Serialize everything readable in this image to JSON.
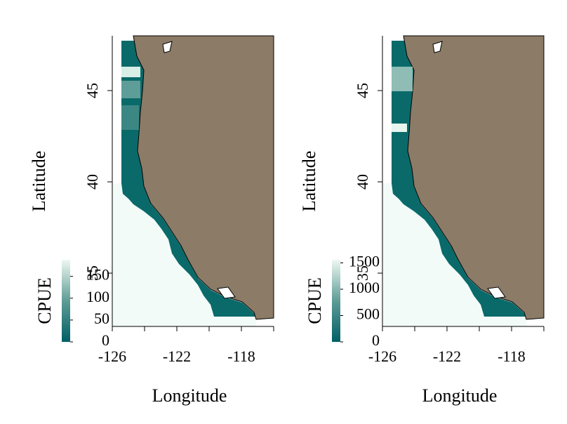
{
  "panels": [
    {
      "x_label": "Longitude",
      "y_label": "Latitude",
      "xlim": [
        -126,
        -116
      ],
      "ylim": [
        32.08,
        48
      ],
      "xticks": [
        -126,
        -122,
        -118
      ],
      "x_minor_ticks": [
        -124,
        -120,
        -116
      ],
      "yticks": [
        35,
        40,
        45
      ],
      "colorbar": {
        "title": "CPUE",
        "lim": [
          0,
          188
        ],
        "ticks": [
          0,
          50,
          100,
          150
        ]
      }
    },
    {
      "x_label": "Longitude",
      "y_label": "Latitude",
      "xlim": [
        -126,
        -116
      ],
      "ylim": [
        32.08,
        48
      ],
      "xticks": [
        -126,
        -122,
        -118
      ],
      "x_minor_ticks": [
        -124,
        -120,
        -116
      ],
      "yticks": [
        35,
        40,
        45
      ],
      "colorbar": {
        "title": "CPUE",
        "lim": [
          0,
          1560
        ],
        "ticks": [
          0,
          500,
          1000,
          1500
        ]
      }
    }
  ]
}
